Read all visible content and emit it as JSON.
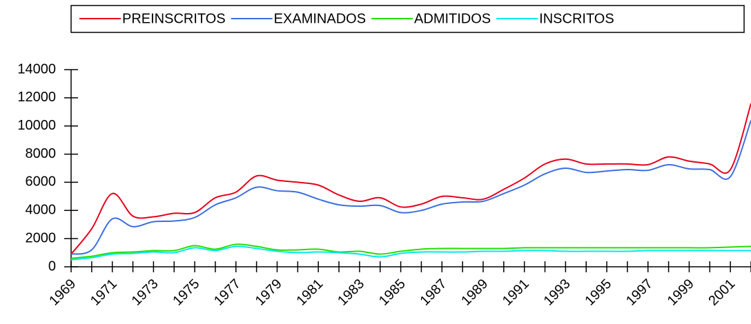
{
  "chart_data": {
    "type": "line",
    "x": [
      1969,
      1970,
      1971,
      1972,
      1973,
      1974,
      1975,
      1976,
      1977,
      1978,
      1979,
      1980,
      1981,
      1982,
      1983,
      1984,
      1985,
      1986,
      1987,
      1988,
      1989,
      1990,
      1991,
      1992,
      1993,
      1994,
      1995,
      1996,
      1997,
      1998,
      1999,
      2000,
      2001,
      2002
    ],
    "series": [
      {
        "name": "PREINSCRITOS",
        "color": "#e8001c",
        "values": [
          900,
          2700,
          5200,
          3600,
          3550,
          3800,
          3850,
          4900,
          5300,
          6450,
          6150,
          6000,
          5800,
          5100,
          4650,
          4900,
          4250,
          4450,
          5000,
          4900,
          4800,
          5500,
          6300,
          7300,
          7650,
          7300,
          7300,
          7300,
          7250,
          7800,
          7500,
          7300,
          6900,
          11600
        ]
      },
      {
        "name": "EXAMINADOS",
        "color": "#3c6ee0",
        "values": [
          900,
          1200,
          3400,
          2850,
          3200,
          3250,
          3500,
          4400,
          4900,
          5650,
          5400,
          5300,
          4800,
          4400,
          4300,
          4350,
          3850,
          4000,
          4450,
          4600,
          4650,
          5200,
          5800,
          6600,
          7000,
          6700,
          6800,
          6900,
          6850,
          7250,
          6950,
          6900,
          6400,
          10400
        ]
      },
      {
        "name": "ADMITIDOS",
        "color": "#22e000",
        "values": [
          600,
          750,
          1000,
          1050,
          1150,
          1150,
          1500,
          1250,
          1600,
          1450,
          1200,
          1200,
          1250,
          1050,
          1100,
          900,
          1100,
          1250,
          1300,
          1300,
          1300,
          1300,
          1350,
          1350,
          1350,
          1350,
          1350,
          1350,
          1350,
          1350,
          1350,
          1350,
          1400,
          1450
        ]
      },
      {
        "name": "INSCRITOS",
        "color": "#00e8f0",
        "values": [
          500,
          650,
          900,
          950,
          1050,
          1000,
          1350,
          1150,
          1450,
          1300,
          1100,
          1000,
          1050,
          1000,
          900,
          700,
          950,
          1050,
          1050,
          1050,
          1100,
          1100,
          1150,
          1150,
          1100,
          1100,
          1100,
          1100,
          1150,
          1150,
          1150,
          1150,
          1150,
          1150
        ]
      }
    ],
    "xlim": [
      1969,
      2002
    ],
    "xticks": [
      1969,
      1971,
      1973,
      1975,
      1977,
      1979,
      1981,
      1983,
      1985,
      1987,
      1989,
      1991,
      1993,
      1995,
      1997,
      1999,
      2001
    ],
    "xminorticks": [
      1970,
      1972,
      1974,
      1976,
      1978,
      1980,
      1982,
      1984,
      1986,
      1988,
      1990,
      1992,
      1994,
      1996,
      1998,
      2000,
      2002
    ],
    "ylim": [
      0,
      14000
    ],
    "yticks": [
      0,
      2000,
      4000,
      6000,
      8000,
      10000,
      12000,
      14000
    ],
    "legend": "top"
  }
}
